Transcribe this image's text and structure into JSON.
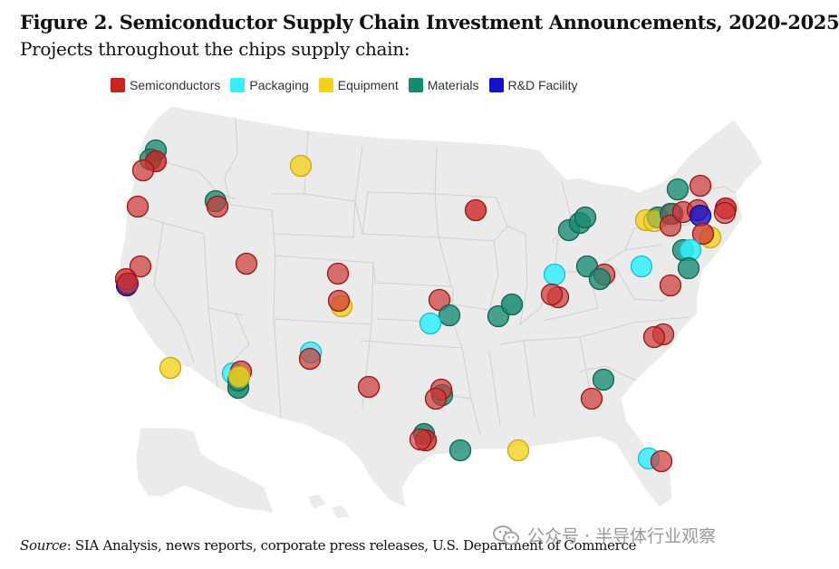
{
  "figure": {
    "title": "Figure 2. Semiconductor Supply Chain Investment Announcements, 2020-2025",
    "subtitle": "Projects throughout the chips supply chain:"
  },
  "legend": [
    {
      "key": "semi",
      "label": "Semiconductors",
      "color": "#cc2222"
    },
    {
      "key": "pack",
      "label": "Packaging",
      "color": "#33f0ff"
    },
    {
      "key": "equip",
      "label": "Equipment",
      "color": "#f5d11c"
    },
    {
      "key": "mat",
      "label": "Materials",
      "color": "#178a72"
    },
    {
      "key": "rnd",
      "label": "R&D Facility",
      "color": "#1111cc"
    }
  ],
  "source": {
    "label": "Source",
    "text": ": SIA Analysis, news reports, corporate press releases, U.S. Department of Commerce"
  },
  "watermark": {
    "text": "公众号 · 半导体行业观察"
  }
}
